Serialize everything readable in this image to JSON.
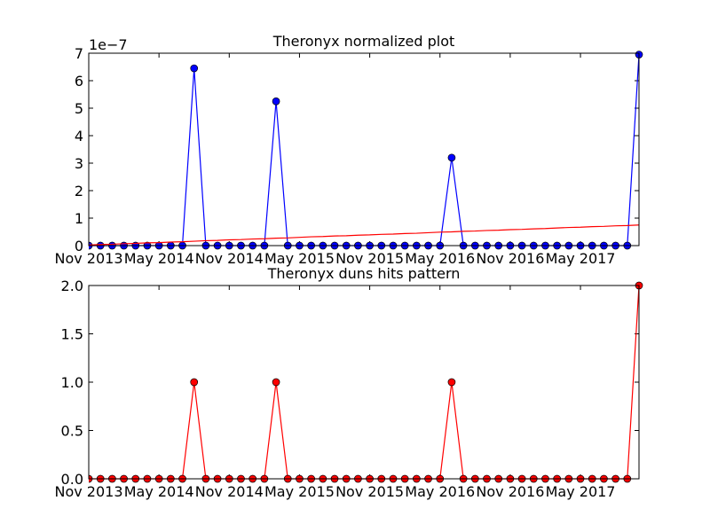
{
  "chart_data": [
    {
      "type": "line",
      "title": "Theronyx normalized plot",
      "offset_label": "1e−7",
      "x": [
        "2013-11",
        "2013-12",
        "2014-01",
        "2014-02",
        "2014-03",
        "2014-04",
        "2014-05",
        "2014-06",
        "2014-07",
        "2014-08",
        "2014-09",
        "2014-10",
        "2014-11",
        "2014-12",
        "2015-01",
        "2015-02",
        "2015-03",
        "2015-04",
        "2015-05",
        "2015-06",
        "2015-07",
        "2015-08",
        "2015-09",
        "2015-10",
        "2015-11",
        "2015-12",
        "2016-01",
        "2016-02",
        "2016-03",
        "2016-04",
        "2016-05",
        "2016-06",
        "2016-07",
        "2016-08",
        "2016-09",
        "2016-10",
        "2016-11",
        "2016-12",
        "2017-01",
        "2017-02",
        "2017-03",
        "2017-04",
        "2017-05",
        "2017-06",
        "2017-07",
        "2017-08",
        "2017-09",
        "2017-10"
      ],
      "series": [
        {
          "color": "#0000ff",
          "markers": true,
          "values": [
            0,
            0,
            0,
            0,
            0,
            0,
            0,
            0,
            0,
            6.45,
            0,
            0,
            0,
            0,
            0,
            0,
            5.25,
            0,
            0,
            0,
            0,
            0,
            0,
            0,
            0,
            0,
            0,
            0,
            0,
            0,
            0,
            3.2,
            0,
            0,
            0,
            0,
            0,
            0,
            0,
            0,
            0,
            0,
            0,
            0,
            0,
            0,
            0,
            6.95
          ]
        },
        {
          "color": "#ff0000",
          "markers": false,
          "values": [
            0.02,
            0.04,
            0.05,
            0.07,
            0.08,
            0.1,
            0.11,
            0.13,
            0.14,
            0.16,
            0.18,
            0.19,
            0.21,
            0.22,
            0.24,
            0.25,
            0.27,
            0.28,
            0.3,
            0.32,
            0.33,
            0.35,
            0.36,
            0.38,
            0.39,
            0.41,
            0.42,
            0.44,
            0.45,
            0.47,
            0.49,
            0.5,
            0.52,
            0.53,
            0.55,
            0.56,
            0.58,
            0.59,
            0.61,
            0.62,
            0.64,
            0.66,
            0.67,
            0.69,
            0.7,
            0.72,
            0.73,
            0.75
          ]
        }
      ],
      "ylim": [
        0,
        7
      ],
      "yticks": [
        0,
        1,
        2,
        3,
        4,
        5,
        6,
        7
      ],
      "xticks": [
        {
          "value": "2013-11",
          "label": "Nov 2013"
        },
        {
          "value": "2014-05",
          "label": "May 2014"
        },
        {
          "value": "2014-11",
          "label": "Nov 2014"
        },
        {
          "value": "2015-05",
          "label": "May 2015"
        },
        {
          "value": "2015-11",
          "label": "Nov 2015"
        },
        {
          "value": "2016-05",
          "label": "May 2016"
        },
        {
          "value": "2016-11",
          "label": "Nov 2016"
        },
        {
          "value": "2017-05",
          "label": "May 2017"
        }
      ]
    },
    {
      "type": "line",
      "title": "Theronyx duns hits pattern",
      "x": [
        "2013-11",
        "2013-12",
        "2014-01",
        "2014-02",
        "2014-03",
        "2014-04",
        "2014-05",
        "2014-06",
        "2014-07",
        "2014-08",
        "2014-09",
        "2014-10",
        "2014-11",
        "2014-12",
        "2015-01",
        "2015-02",
        "2015-03",
        "2015-04",
        "2015-05",
        "2015-06",
        "2015-07",
        "2015-08",
        "2015-09",
        "2015-10",
        "2015-11",
        "2015-12",
        "2016-01",
        "2016-02",
        "2016-03",
        "2016-04",
        "2016-05",
        "2016-06",
        "2016-07",
        "2016-08",
        "2016-09",
        "2016-10",
        "2016-11",
        "2016-12",
        "2017-01",
        "2017-02",
        "2017-03",
        "2017-04",
        "2017-05",
        "2017-06",
        "2017-07",
        "2017-08",
        "2017-09",
        "2017-10"
      ],
      "series": [
        {
          "color": "#ff0000",
          "markers": true,
          "values": [
            0,
            0,
            0,
            0,
            0,
            0,
            0,
            0,
            0,
            1,
            0,
            0,
            0,
            0,
            0,
            0,
            1,
            0,
            0,
            0,
            0,
            0,
            0,
            0,
            0,
            0,
            0,
            0,
            0,
            0,
            0,
            1,
            0,
            0,
            0,
            0,
            0,
            0,
            0,
            0,
            0,
            0,
            0,
            0,
            0,
            0,
            0,
            2
          ]
        }
      ],
      "ylim": [
        0,
        2
      ],
      "yticks": [
        {
          "value": 0,
          "label": "0.0"
        },
        {
          "value": 0.5,
          "label": "0.5"
        },
        {
          "value": 1,
          "label": "1.0"
        },
        {
          "value": 1.5,
          "label": "1.5"
        },
        {
          "value": 2,
          "label": "2.0"
        }
      ],
      "xticks": [
        {
          "value": "2013-11",
          "label": "Nov 2013"
        },
        {
          "value": "2014-05",
          "label": "May 2014"
        },
        {
          "value": "2014-11",
          "label": "Nov 2014"
        },
        {
          "value": "2015-05",
          "label": "May 2015"
        },
        {
          "value": "2015-11",
          "label": "Nov 2015"
        },
        {
          "value": "2016-05",
          "label": "May 2016"
        },
        {
          "value": "2016-11",
          "label": "Nov 2016"
        },
        {
          "value": "2017-05",
          "label": "May 2017"
        }
      ]
    }
  ]
}
